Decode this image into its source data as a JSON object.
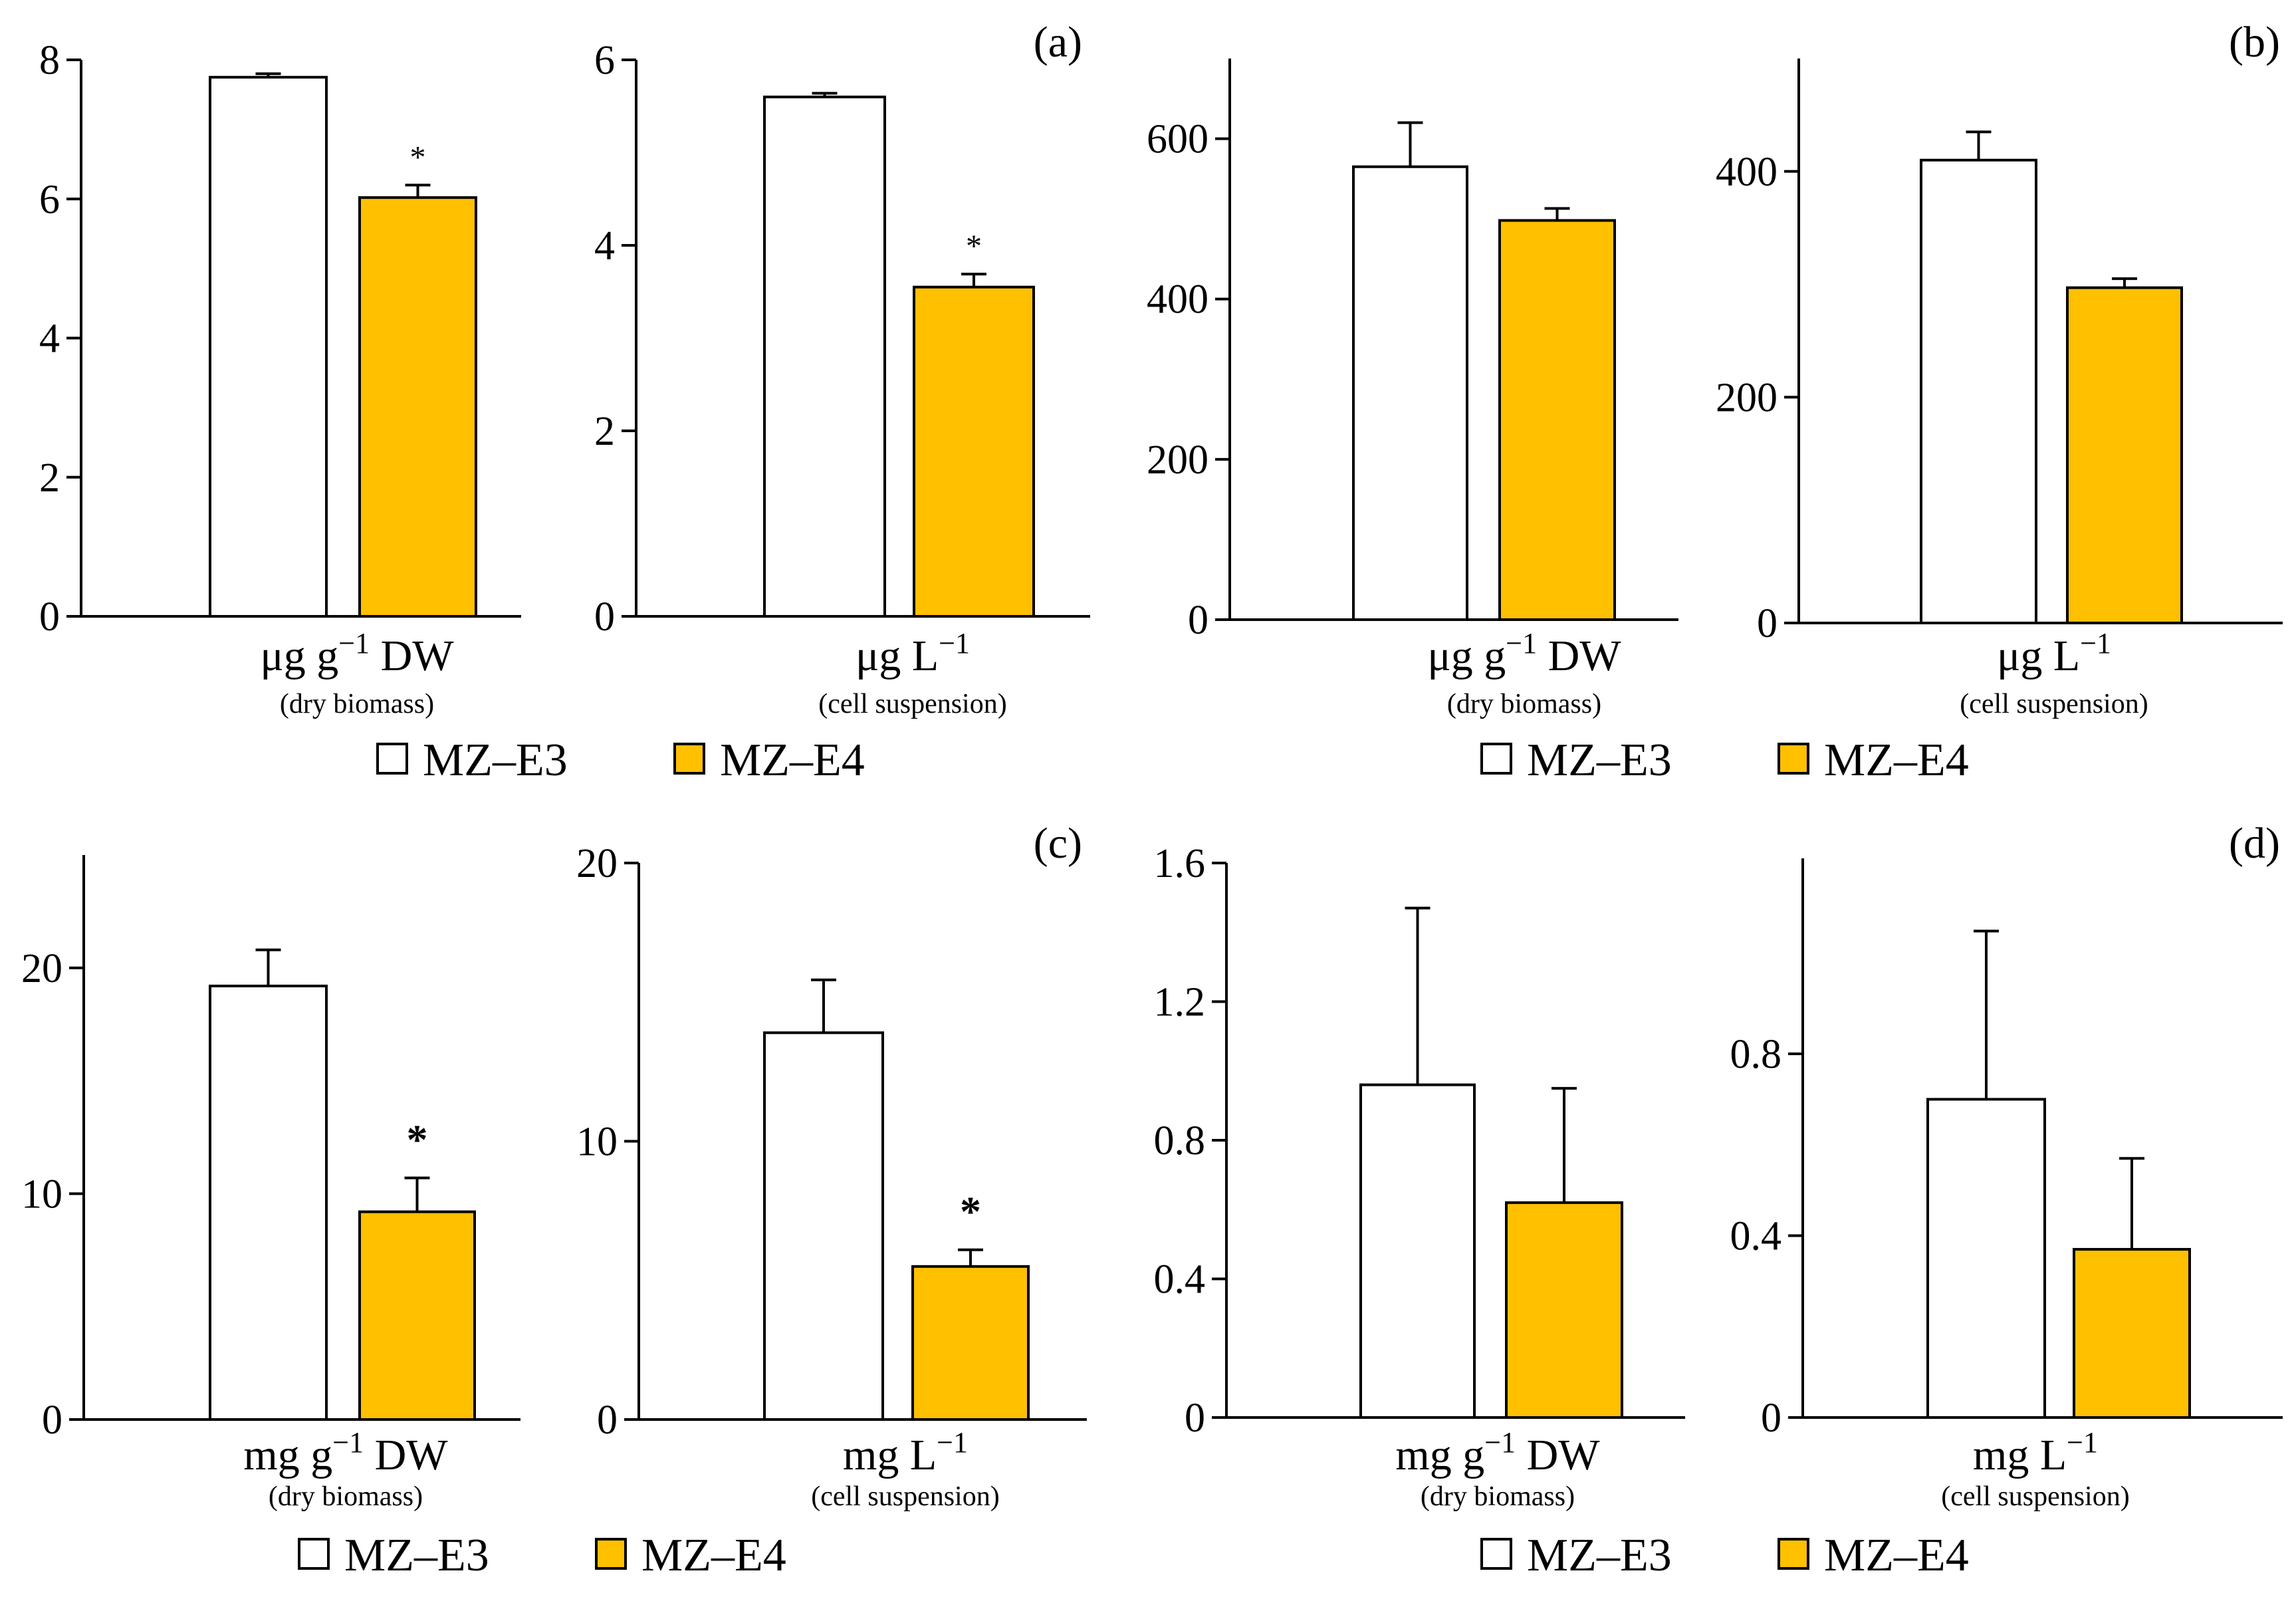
{
  "colors": {
    "e3": "#ffffff",
    "e4": "#FFC000",
    "stroke": "#000000"
  },
  "legend": [
    {
      "label": "MZ–E3",
      "color": "#ffffff"
    },
    {
      "label": "MZ–E4",
      "color": "#FFC000"
    }
  ],
  "chart_data": [
    {
      "id": "a-left",
      "type": "bar",
      "panel_label": "",
      "ylim": [
        0,
        8
      ],
      "yticks": [
        "0",
        "2",
        "4",
        "6",
        "8"
      ],
      "xlabel_main": "μg g",
      "xlabel_exp": "−1",
      "xlabel_rest": " DW",
      "xlabel_sub": "(dry biomass)",
      "series": [
        {
          "name": "MZ–E3",
          "value": 7.75,
          "error": 0.05,
          "star": ""
        },
        {
          "name": "MZ–E4",
          "value": 6.02,
          "error": 0.18,
          "star": "*"
        }
      ]
    },
    {
      "id": "a-right",
      "type": "bar",
      "panel_label": "(a)",
      "ylim": [
        0,
        6
      ],
      "yticks": [
        "0",
        "2",
        "4",
        "6"
      ],
      "xlabel_main": "μg L",
      "xlabel_exp": "−1",
      "xlabel_rest": "",
      "xlabel_sub": "(cell suspension)",
      "series": [
        {
          "name": "MZ–E3",
          "value": 5.6,
          "error": 0.04,
          "star": ""
        },
        {
          "name": "MZ–E4",
          "value": 3.55,
          "error": 0.14,
          "star": "*"
        }
      ]
    },
    {
      "id": "b-left",
      "type": "bar",
      "panel_label": "",
      "ylim": [
        0,
        700
      ],
      "yticks": [
        "0",
        "200",
        "400",
        "600"
      ],
      "xlabel_main": "μg g",
      "xlabel_exp": "−1",
      "xlabel_rest": " DW",
      "xlabel_sub": "(dry biomass)",
      "series": [
        {
          "name": "MZ–E3",
          "value": 565,
          "error": 55,
          "star": ""
        },
        {
          "name": "MZ–E4",
          "value": 498,
          "error": 15,
          "star": ""
        }
      ]
    },
    {
      "id": "b-right",
      "type": "bar",
      "panel_label": "(b)",
      "ylim": [
        0,
        500
      ],
      "yticks": [
        "0",
        "200",
        "400"
      ],
      "xlabel_main": "μg L",
      "xlabel_exp": "−1",
      "xlabel_rest": "",
      "xlabel_sub": "(cell suspension)",
      "series": [
        {
          "name": "MZ–E3",
          "value": 410,
          "error": 25,
          "star": ""
        },
        {
          "name": "MZ–E4",
          "value": 297,
          "error": 8,
          "star": ""
        }
      ]
    },
    {
      "id": "c-left",
      "type": "bar",
      "panel_label": "",
      "ylim": [
        0,
        25
      ],
      "yticks": [
        "0",
        "10",
        "20"
      ],
      "xlabel_main": "mg g",
      "xlabel_exp": "−1",
      "xlabel_rest": " DW",
      "xlabel_sub": "(dry biomass)",
      "series": [
        {
          "name": "MZ–E3",
          "value": 19.2,
          "error": 1.6,
          "star": ""
        },
        {
          "name": "MZ–E4",
          "value": 9.2,
          "error": 1.5,
          "star": "*"
        }
      ],
      "bold_star": true
    },
    {
      "id": "c-right",
      "type": "bar",
      "panel_label": "(c)",
      "ylim": [
        0,
        20
      ],
      "yticks": [
        "0",
        "10",
        "20"
      ],
      "xlabel_main": "mg L",
      "xlabel_exp": "−1",
      "xlabel_rest": "",
      "xlabel_sub": "(cell suspension)",
      "series": [
        {
          "name": "MZ–E3",
          "value": 13.9,
          "error": 1.9,
          "star": ""
        },
        {
          "name": "MZ–E4",
          "value": 5.5,
          "error": 0.6,
          "star": "*"
        }
      ],
      "bold_star": true
    },
    {
      "id": "d-left",
      "type": "bar",
      "panel_label": "",
      "ylim": [
        0,
        1.6
      ],
      "yticks": [
        "0",
        "0.4",
        "0.8",
        "1.2",
        "1.6"
      ],
      "xlabel_main": "mg g",
      "xlabel_exp": "−1",
      "xlabel_rest": " DW",
      "xlabel_sub": "(dry biomass)",
      "series": [
        {
          "name": "MZ–E3",
          "value": 0.96,
          "error": 0.51,
          "star": ""
        },
        {
          "name": "MZ–E4",
          "value": 0.62,
          "error": 0.33,
          "star": ""
        }
      ]
    },
    {
      "id": "d-right",
      "type": "bar",
      "panel_label": "(d)",
      "ylim": [
        0,
        1.23
      ],
      "yticks": [
        "0",
        "0.4",
        "0.8"
      ],
      "xlabel_main": "mg L",
      "xlabel_exp": "−1",
      "xlabel_rest": "",
      "xlabel_sub": "(cell suspension)",
      "series": [
        {
          "name": "MZ–E3",
          "value": 0.7,
          "error": 0.37,
          "star": ""
        },
        {
          "name": "MZ–E4",
          "value": 0.37,
          "error": 0.2,
          "star": ""
        }
      ]
    }
  ]
}
